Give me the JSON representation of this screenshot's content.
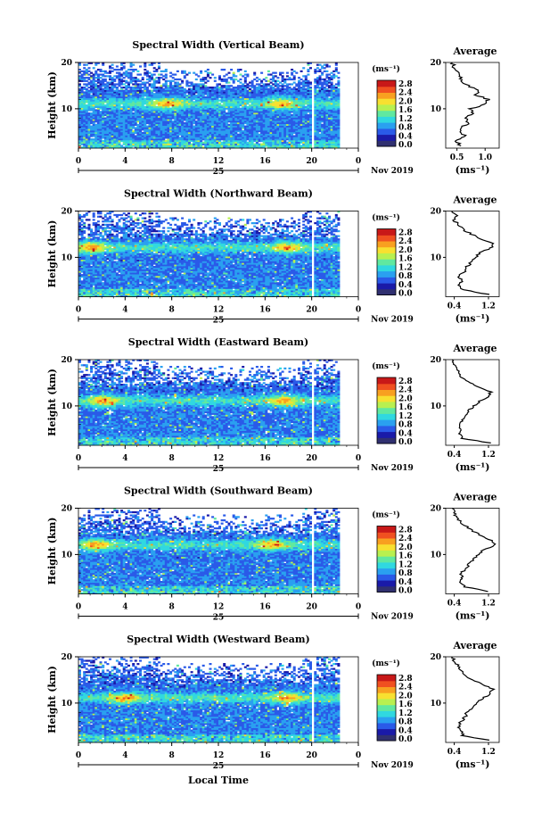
{
  "figure": {
    "xlabel": "Local Time",
    "date_label": "Nov 2019",
    "day_label": "25",
    "x_ticks": [
      "0",
      "4",
      "8",
      "12",
      "16",
      "20",
      "0"
    ],
    "ylabel": "Height (km)",
    "colorbar_unit": "(ms⁻¹)",
    "colorbar_ticks": [
      "0.0",
      "0.4",
      "0.8",
      "1.2",
      "1.6",
      "2.0",
      "2.4",
      "2.8"
    ],
    "avg_title": "Average",
    "avg_xlabel": "(ms⁻¹)"
  },
  "colors": {
    "colormap": [
      "#303070",
      "#1a1aa8",
      "#2a5ae8",
      "#2aa0f0",
      "#30d8e0",
      "#60e8a0",
      "#b8f050",
      "#f8e030",
      "#f8a020",
      "#f05020",
      "#c81818"
    ]
  },
  "chart_data": [
    {
      "type": "heatmap",
      "title": "Spectral Width (Vertical Beam)",
      "xlim": [
        0,
        24
      ],
      "ylim": [
        1.5,
        20
      ],
      "y_ticks": [
        "10",
        "20"
      ],
      "colorbar_ticks": [
        0.0,
        0.4,
        0.8,
        1.2,
        1.6,
        2.0,
        2.4,
        2.8
      ],
      "data_gap_local_time": [
        19.85,
        20.1
      ],
      "data_end_local_time": 22.2,
      "layer": {
        "height_km": 11,
        "peak_times": [
          7.5,
          17.3
        ]
      },
      "average": {
        "xticks": [
          "0.5",
          "1.0"
        ],
        "xlim": [
          0.3,
          1.25
        ],
        "profile": [
          [
            0.55,
            2
          ],
          [
            0.5,
            3
          ],
          [
            0.65,
            4
          ],
          [
            0.55,
            5
          ],
          [
            0.6,
            6
          ],
          [
            0.7,
            7
          ],
          [
            0.65,
            8
          ],
          [
            0.8,
            9
          ],
          [
            0.75,
            10
          ],
          [
            1.0,
            11
          ],
          [
            1.05,
            12
          ],
          [
            0.85,
            13
          ],
          [
            0.9,
            14
          ],
          [
            0.7,
            15
          ],
          [
            0.6,
            16
          ],
          [
            0.55,
            17
          ],
          [
            0.5,
            18
          ],
          [
            0.45,
            19
          ],
          [
            0.42,
            20
          ]
        ]
      }
    },
    {
      "type": "heatmap",
      "title": "Spectral Width (Northward Beam)",
      "xlim": [
        0,
        24
      ],
      "ylim": [
        1.5,
        20
      ],
      "y_ticks": [
        "10",
        "20"
      ],
      "colorbar_ticks": [
        0.0,
        0.4,
        0.8,
        1.2,
        1.6,
        2.0,
        2.4,
        2.8
      ],
      "data_gap_local_time": [
        19.85,
        20.1
      ],
      "data_end_local_time": 22.2,
      "layer": {
        "height_km": 12,
        "peak_times": [
          1.0,
          17.8
        ]
      },
      "average": {
        "xticks": [
          "0.4",
          "1.2"
        ],
        "xlim": [
          0.2,
          1.45
        ],
        "profile": [
          [
            1.2,
            2
          ],
          [
            0.6,
            3
          ],
          [
            0.5,
            4
          ],
          [
            0.6,
            5
          ],
          [
            0.5,
            6
          ],
          [
            0.65,
            7
          ],
          [
            0.7,
            8
          ],
          [
            0.8,
            9
          ],
          [
            0.9,
            10
          ],
          [
            1.0,
            11
          ],
          [
            1.25,
            12
          ],
          [
            1.3,
            13
          ],
          [
            1.0,
            14
          ],
          [
            0.8,
            15
          ],
          [
            0.6,
            16
          ],
          [
            0.5,
            17
          ],
          [
            0.4,
            18
          ],
          [
            0.45,
            19
          ],
          [
            0.35,
            20
          ]
        ]
      }
    },
    {
      "type": "heatmap",
      "title": "Spectral Width (Eastward Beam)",
      "xlim": [
        0,
        24
      ],
      "ylim": [
        1.5,
        20
      ],
      "y_ticks": [
        "10",
        "20"
      ],
      "colorbar_ticks": [
        0.0,
        0.4,
        0.8,
        1.2,
        1.6,
        2.0,
        2.4,
        2.8
      ],
      "data_gap_local_time": [
        19.85,
        20.1
      ],
      "data_end_local_time": 22.2,
      "layer": {
        "height_km": 11,
        "peak_times": [
          2.0,
          17.5
        ]
      },
      "average": {
        "xticks": [
          "0.4",
          "1.2"
        ],
        "xlim": [
          0.2,
          1.45
        ],
        "profile": [
          [
            1.25,
            2
          ],
          [
            0.6,
            3
          ],
          [
            0.5,
            4
          ],
          [
            0.55,
            5
          ],
          [
            0.5,
            6
          ],
          [
            0.6,
            7
          ],
          [
            0.7,
            8
          ],
          [
            0.75,
            9
          ],
          [
            0.85,
            10
          ],
          [
            1.0,
            11
          ],
          [
            1.2,
            12
          ],
          [
            1.25,
            13
          ],
          [
            1.0,
            14
          ],
          [
            0.75,
            15
          ],
          [
            0.6,
            16
          ],
          [
            0.5,
            17
          ],
          [
            0.45,
            18
          ],
          [
            0.4,
            19
          ],
          [
            0.35,
            20
          ]
        ]
      }
    },
    {
      "type": "heatmap",
      "title": "Spectral Width (Southward Beam)",
      "xlim": [
        0,
        24
      ],
      "ylim": [
        1.5,
        20
      ],
      "y_ticks": [
        "10",
        "20"
      ],
      "colorbar_ticks": [
        0.0,
        0.4,
        0.8,
        1.2,
        1.6,
        2.0,
        2.4,
        2.8
      ],
      "data_gap_local_time": [
        19.85,
        20.1
      ],
      "data_end_local_time": 22.2,
      "layer": {
        "height_km": 12,
        "peak_times": [
          1.5,
          16.5
        ]
      },
      "average": {
        "xticks": [
          "0.4",
          "1.2"
        ],
        "xlim": [
          0.2,
          1.45
        ],
        "profile": [
          [
            1.2,
            2
          ],
          [
            0.65,
            3
          ],
          [
            0.55,
            4
          ],
          [
            0.6,
            5
          ],
          [
            0.55,
            6
          ],
          [
            0.7,
            7
          ],
          [
            0.75,
            8
          ],
          [
            0.85,
            9
          ],
          [
            0.95,
            10
          ],
          [
            1.1,
            11
          ],
          [
            1.35,
            12
          ],
          [
            1.3,
            13
          ],
          [
            1.05,
            14
          ],
          [
            0.85,
            15
          ],
          [
            0.7,
            16
          ],
          [
            0.55,
            17
          ],
          [
            0.45,
            18
          ],
          [
            0.4,
            19
          ],
          [
            0.35,
            20
          ]
        ]
      }
    },
    {
      "type": "heatmap",
      "title": "Spectral Width (Westward Beam)",
      "xlim": [
        0,
        24
      ],
      "ylim": [
        1.5,
        20
      ],
      "y_ticks": [
        "10",
        "20"
      ],
      "colorbar_ticks": [
        0.0,
        0.4,
        0.8,
        1.2,
        1.6,
        2.0,
        2.4,
        2.8
      ],
      "data_gap_local_time": [
        19.85,
        20.1
      ],
      "data_end_local_time": 22.2,
      "layer": {
        "height_km": 11,
        "peak_times": [
          4.0,
          17.8
        ]
      },
      "average": {
        "xticks": [
          "0.4",
          "1.2"
        ],
        "xlim": [
          0.2,
          1.45
        ],
        "profile": [
          [
            1.2,
            2
          ],
          [
            0.6,
            3
          ],
          [
            0.55,
            4
          ],
          [
            0.5,
            5
          ],
          [
            0.55,
            6
          ],
          [
            0.65,
            7
          ],
          [
            0.7,
            8
          ],
          [
            0.8,
            9
          ],
          [
            0.9,
            10
          ],
          [
            1.05,
            11
          ],
          [
            1.25,
            12
          ],
          [
            1.3,
            13
          ],
          [
            1.05,
            14
          ],
          [
            0.85,
            15
          ],
          [
            0.65,
            16
          ],
          [
            0.55,
            17
          ],
          [
            0.5,
            18
          ],
          [
            0.4,
            19
          ],
          [
            0.35,
            20
          ]
        ]
      }
    }
  ]
}
